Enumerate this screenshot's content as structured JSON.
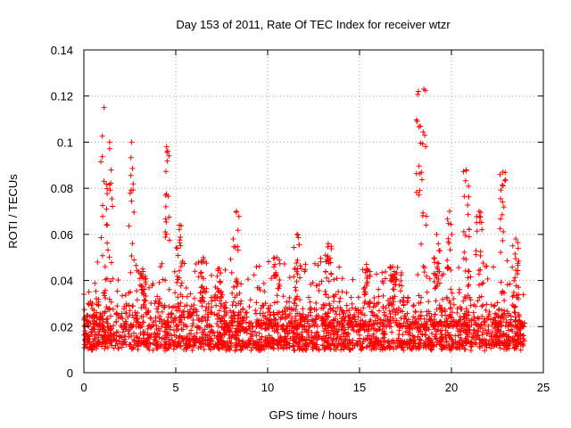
{
  "chart_data": {
    "type": "scatter",
    "title": "Day 153 of 2011, Rate Of TEC Index for receiver wtzr",
    "xlabel": "GPS time / hours",
    "ylabel": "ROTI / TECUs",
    "xlim": [
      0,
      25
    ],
    "ylim": [
      0,
      0.14
    ],
    "xticks": [
      "0",
      "5",
      "10",
      "15",
      "20",
      "25"
    ],
    "yticks": [
      "0",
      "0.02",
      "0.04",
      "0.06",
      "0.08",
      "0.1",
      "0.12",
      "0.14"
    ],
    "grid": true,
    "marker": "plus",
    "color": "#ff0000",
    "series": [
      {
        "name": "ROTI",
        "x_range": [
          0,
          24
        ],
        "baseline_range": [
          0.005,
          0.035
        ],
        "spikes": [
          {
            "x": 1.1,
            "peak": 0.115
          },
          {
            "x": 1.4,
            "peak": 0.1
          },
          {
            "x": 2.6,
            "peak": 0.1
          },
          {
            "x": 3.2,
            "peak": 0.045
          },
          {
            "x": 4.5,
            "peak": 0.098
          },
          {
            "x": 5.2,
            "peak": 0.064
          },
          {
            "x": 6.5,
            "peak": 0.05
          },
          {
            "x": 7.3,
            "peak": 0.045
          },
          {
            "x": 8.3,
            "peak": 0.07
          },
          {
            "x": 10.5,
            "peak": 0.05
          },
          {
            "x": 11.6,
            "peak": 0.06
          },
          {
            "x": 13.3,
            "peak": 0.056
          },
          {
            "x": 15.4,
            "peak": 0.045
          },
          {
            "x": 16.8,
            "peak": 0.046
          },
          {
            "x": 18.2,
            "peak": 0.122
          },
          {
            "x": 18.5,
            "peak": 0.123
          },
          {
            "x": 19.2,
            "peak": 0.06
          },
          {
            "x": 19.9,
            "peak": 0.07
          },
          {
            "x": 20.8,
            "peak": 0.088
          },
          {
            "x": 21.5,
            "peak": 0.07
          },
          {
            "x": 22.8,
            "peak": 0.087
          },
          {
            "x": 23.5,
            "peak": 0.058
          }
        ]
      }
    ]
  }
}
